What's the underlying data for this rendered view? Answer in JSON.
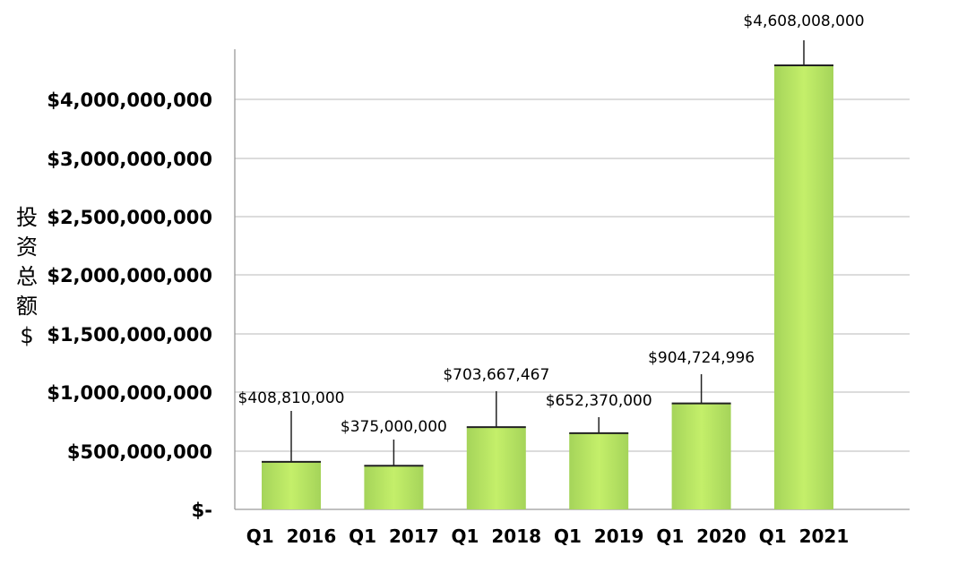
{
  "chart_data": {
    "type": "bar",
    "title": "",
    "xlabel": "",
    "ylabel": "投资总额 $",
    "categories": [
      "Q1  2016",
      "Q1  2017",
      "Q1  2018",
      "Q1  2019",
      "Q1  2020",
      "Q1  2021"
    ],
    "values": [
      408810000,
      375000000,
      703667467,
      652370000,
      904724996,
      4608008000
    ],
    "data_labels": [
      "$408,810,000",
      "$375,000,000",
      "$703,667,467",
      "$652,370,000",
      "$904,724,996",
      "$4,608,008,000"
    ],
    "yticks": [
      {
        "value": 0,
        "label": "$-"
      },
      {
        "value": 500000000,
        "label": "$500,000,000"
      },
      {
        "value": 1000000000,
        "label": "$1,000,000,000"
      },
      {
        "value": 1500000000,
        "label": "$1,500,000,000"
      },
      {
        "value": 2000000000,
        "label": "$2,000,000,000"
      },
      {
        "value": 2500000000,
        "label": "$2,500,000,000"
      },
      {
        "value": 3000000000,
        "label": "$3,000,000,000"
      },
      {
        "value": 4000000000,
        "label": "$4,000,000,000"
      }
    ],
    "grid": true,
    "legend": "none",
    "colors": {
      "bar_fill": "#c4ef6a",
      "bar_edge": "#a5d45a",
      "bar_top": "#222222",
      "grid": "#c8c8c8",
      "axis": "#9a9a9a"
    }
  }
}
